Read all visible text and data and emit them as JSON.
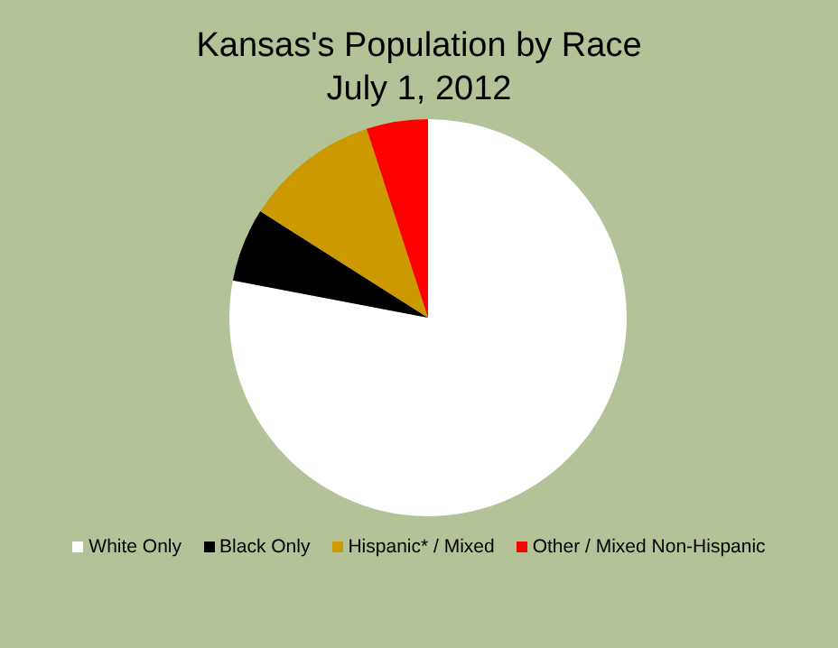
{
  "chart_data": {
    "type": "pie",
    "title": "Kansas's Population by Race",
    "subtitle": "July 1, 2012",
    "categories": [
      "White Only",
      "Black Only",
      "Hispanic* / Mixed",
      "Other / Mixed Non-Hispanic"
    ],
    "values": [
      78,
      6,
      11,
      5
    ],
    "colors": [
      "#ffffff",
      "#000000",
      "#cc9900",
      "#ff0000"
    ],
    "legend": "bottom"
  }
}
